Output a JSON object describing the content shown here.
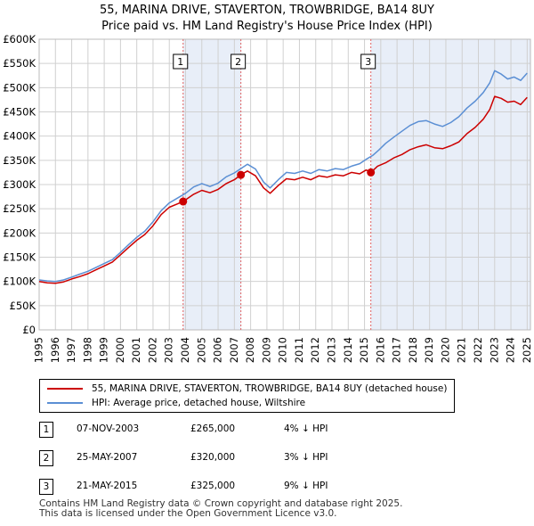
{
  "title_line1": "55, MARINA DRIVE, STAVERTON, TROWBRIDGE, BA14 8UY",
  "title_line2": "Price paid vs. HM Land Registry's House Price Index (HPI)",
  "chart_data": {
    "type": "line",
    "ylim": [
      0,
      600000
    ],
    "xlim": [
      1995,
      2025.2
    ],
    "y_ticks": [
      0,
      50000,
      100000,
      150000,
      200000,
      250000,
      300000,
      350000,
      400000,
      450000,
      500000,
      550000,
      600000
    ],
    "y_tick_labels": [
      "£0",
      "£50K",
      "£100K",
      "£150K",
      "£200K",
      "£250K",
      "£300K",
      "£350K",
      "£400K",
      "£450K",
      "£500K",
      "£550K",
      "£600K"
    ],
    "x_ticks": [
      1995,
      1996,
      1997,
      1998,
      1999,
      2000,
      2001,
      2002,
      2003,
      2004,
      2005,
      2006,
      2007,
      2008,
      2009,
      2010,
      2011,
      2012,
      2013,
      2014,
      2015,
      2016,
      2017,
      2018,
      2019,
      2020,
      2021,
      2022,
      2023,
      2024,
      2025
    ],
    "x_tick_labels": [
      "1995",
      "1996",
      "1997",
      "1998",
      "1999",
      "2000",
      "2001",
      "2002",
      "2003",
      "2004",
      "2005",
      "2006",
      "2007",
      "2008",
      "2009",
      "2010",
      "2011",
      "2012",
      "2013",
      "2014",
      "2015",
      "2016",
      "2017",
      "2018",
      "2019",
      "2020",
      "2021",
      "2022",
      "2023",
      "2024",
      "2025"
    ],
    "grid": true,
    "series": [
      {
        "name": "55, MARINA DRIVE, STAVERTON, TROWBRIDGE, BA14 8UY (detached house)",
        "color": "#cc0000",
        "x": [
          1995.0,
          1995.5,
          1996.0,
          1996.5,
          1997.0,
          1997.5,
          1998.0,
          1998.5,
          1999.0,
          1999.5,
          2000.0,
          2000.5,
          2001.0,
          2001.5,
          2002.0,
          2002.5,
          2003.0,
          2003.5,
          2003.85,
          2004.5,
          2005.0,
          2005.5,
          2006.0,
          2006.5,
          2007.0,
          2007.4,
          2007.8,
          2008.3,
          2008.8,
          2009.2,
          2009.7,
          2010.2,
          2010.7,
          2011.2,
          2011.7,
          2012.2,
          2012.7,
          2013.2,
          2013.7,
          2014.2,
          2014.7,
          2015.1,
          2015.39,
          2015.8,
          2016.3,
          2016.8,
          2017.3,
          2017.8,
          2018.3,
          2018.8,
          2019.3,
          2019.8,
          2020.3,
          2020.8,
          2021.3,
          2021.8,
          2022.3,
          2022.7,
          2023.0,
          2023.4,
          2023.8,
          2024.2,
          2024.6,
          2025.0
        ],
        "y": [
          100000,
          97000,
          96000,
          99000,
          105000,
          110000,
          116000,
          124000,
          132000,
          140000,
          155000,
          170000,
          185000,
          197000,
          215000,
          238000,
          253000,
          260000,
          265000,
          280000,
          288000,
          283000,
          290000,
          302000,
          310000,
          320000,
          328000,
          318000,
          293000,
          282000,
          298000,
          312000,
          310000,
          315000,
          310000,
          318000,
          315000,
          320000,
          318000,
          325000,
          322000,
          330000,
          325000,
          338000,
          345000,
          355000,
          362000,
          372000,
          378000,
          382000,
          376000,
          374000,
          380000,
          388000,
          405000,
          418000,
          435000,
          455000,
          482000,
          478000,
          470000,
          472000,
          465000,
          480000
        ]
      },
      {
        "name": "HPI: Average price, detached house, Wiltshire",
        "color": "#5b8fd4",
        "x": [
          1995.0,
          1995.5,
          1996.0,
          1996.5,
          1997.0,
          1997.5,
          1998.0,
          1998.5,
          1999.0,
          1999.5,
          2000.0,
          2000.5,
          2001.0,
          2001.5,
          2002.0,
          2002.5,
          2003.0,
          2003.5,
          2004.0,
          2004.5,
          2005.0,
          2005.5,
          2006.0,
          2006.5,
          2007.0,
          2007.4,
          2007.8,
          2008.3,
          2008.8,
          2009.2,
          2009.7,
          2010.2,
          2010.7,
          2011.2,
          2011.7,
          2012.2,
          2012.7,
          2013.2,
          2013.7,
          2014.2,
          2014.7,
          2015.1,
          2015.5,
          2015.9,
          2016.3,
          2016.8,
          2017.3,
          2017.8,
          2018.3,
          2018.8,
          2019.3,
          2019.8,
          2020.3,
          2020.8,
          2021.3,
          2021.8,
          2022.3,
          2022.7,
          2023.0,
          2023.4,
          2023.8,
          2024.2,
          2024.6,
          2025.0
        ],
        "y": [
          103000,
          101000,
          100000,
          103000,
          109000,
          115000,
          121000,
          129000,
          137000,
          145000,
          160000,
          176000,
          191000,
          204000,
          223000,
          246000,
          262000,
          272000,
          282000,
          295000,
          302000,
          296000,
          303000,
          316000,
          324000,
          333000,
          342000,
          332000,
          305000,
          293000,
          310000,
          325000,
          323000,
          328000,
          323000,
          331000,
          328000,
          333000,
          331000,
          338000,
          343000,
          352000,
          360000,
          372000,
          385000,
          398000,
          410000,
          422000,
          430000,
          432000,
          425000,
          420000,
          428000,
          440000,
          458000,
          472000,
          490000,
          510000,
          535000,
          528000,
          518000,
          522000,
          515000,
          530000
        ]
      }
    ],
    "sales": [
      {
        "label": "1",
        "x": 2003.85,
        "y": 265000
      },
      {
        "label": "2",
        "x": 2007.4,
        "y": 320000
      },
      {
        "label": "3",
        "x": 2015.39,
        "y": 325000
      }
    ]
  },
  "legend": {
    "red_label": "55, MARINA DRIVE, STAVERTON, TROWBRIDGE, BA14 8UY (detached house)",
    "blue_label": "HPI: Average price, detached house, Wiltshire"
  },
  "transactions": [
    {
      "num": "1",
      "date": "07-NOV-2003",
      "price": "£265,000",
      "hpi": "4% ↓ HPI"
    },
    {
      "num": "2",
      "date": "25-MAY-2007",
      "price": "£320,000",
      "hpi": "3% ↓ HPI"
    },
    {
      "num": "3",
      "date": "21-MAY-2015",
      "price": "£325,000",
      "hpi": "9% ↓ HPI"
    }
  ],
  "footer": {
    "line1": "Contains HM Land Registry data © Crown copyright and database right 2025.",
    "line2": "This data is licensed under the Open Government Licence v3.0."
  }
}
